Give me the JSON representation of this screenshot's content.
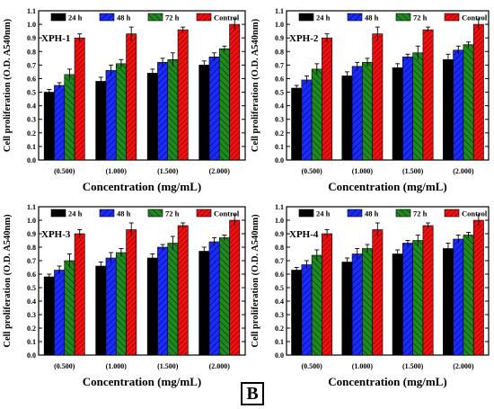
{
  "figure_label": "B",
  "colors": {
    "24 h": "#000000",
    "48 h": "#1a2bff",
    "72 h": "#1f8a1f",
    "Control": "#f01010"
  },
  "hatches": {
    "24 h": "none",
    "48 h": "diag-right",
    "72 h": "diag-left",
    "Control": "diag-right-dense"
  },
  "chart_data": [
    {
      "type": "bar",
      "panel_label": "XPH-1",
      "categories": [
        "(0.500)",
        "(1.000)",
        "(1.500)",
        "(2.000)"
      ],
      "series": [
        {
          "name": "24 h",
          "values": [
            0.5,
            0.58,
            0.64,
            0.7
          ],
          "errors": [
            0.02,
            0.03,
            0.03,
            0.03
          ]
        },
        {
          "name": "48 h",
          "values": [
            0.55,
            0.66,
            0.72,
            0.76
          ],
          "errors": [
            0.02,
            0.04,
            0.03,
            0.03
          ]
        },
        {
          "name": "72 h",
          "values": [
            0.63,
            0.71,
            0.74,
            0.82
          ],
          "errors": [
            0.04,
            0.03,
            0.05,
            0.02
          ]
        },
        {
          "name": "Control",
          "values": [
            0.9,
            0.93,
            0.96,
            1.0
          ],
          "errors": [
            0.03,
            0.05,
            0.02,
            0.04
          ]
        }
      ],
      "xlabel": "Concentration (mg/mL)",
      "ylabel": "Cell proliferation (O.D. A540nm)",
      "ylim": [
        0,
        1.1
      ],
      "yticks": [
        "0.0",
        "0.1",
        "0.2",
        "0.3",
        "0.4",
        "0.5",
        "0.6",
        "0.7",
        "0.8",
        "0.9",
        "1.0",
        "1.1"
      ],
      "legend_placement": "top"
    },
    {
      "type": "bar",
      "panel_label": "XPH-2",
      "categories": [
        "(0.500)",
        "(1.000)",
        "(1.500)",
        "(2.000)"
      ],
      "series": [
        {
          "name": "24 h",
          "values": [
            0.53,
            0.62,
            0.68,
            0.74
          ],
          "errors": [
            0.02,
            0.03,
            0.03,
            0.04
          ]
        },
        {
          "name": "48 h",
          "values": [
            0.59,
            0.69,
            0.76,
            0.81
          ],
          "errors": [
            0.03,
            0.03,
            0.02,
            0.03
          ]
        },
        {
          "name": "72 h",
          "values": [
            0.67,
            0.72,
            0.79,
            0.85
          ],
          "errors": [
            0.04,
            0.03,
            0.05,
            0.02
          ]
        },
        {
          "name": "Control",
          "values": [
            0.9,
            0.93,
            0.96,
            1.0
          ],
          "errors": [
            0.03,
            0.05,
            0.02,
            0.04
          ]
        }
      ],
      "xlabel": "Concentration (mg/mL)",
      "ylabel": "Cell proliferation (O.D. A540nm)",
      "ylim": [
        0,
        1.1
      ],
      "yticks": [
        "0.0",
        "0.1",
        "0.2",
        "0.3",
        "0.4",
        "0.5",
        "0.6",
        "0.7",
        "0.8",
        "0.9",
        "1.0",
        "1.1"
      ],
      "legend_placement": "top"
    },
    {
      "type": "bar",
      "panel_label": "XPH-3",
      "categories": [
        "(0.500)",
        "(1.000)",
        "(1.500)",
        "(2.000)"
      ],
      "series": [
        {
          "name": "24 h",
          "values": [
            0.58,
            0.66,
            0.72,
            0.77
          ],
          "errors": [
            0.02,
            0.03,
            0.03,
            0.03
          ]
        },
        {
          "name": "48 h",
          "values": [
            0.63,
            0.72,
            0.8,
            0.84
          ],
          "errors": [
            0.03,
            0.04,
            0.02,
            0.03
          ]
        },
        {
          "name": "72 h",
          "values": [
            0.7,
            0.76,
            0.83,
            0.87
          ],
          "errors": [
            0.05,
            0.03,
            0.05,
            0.02
          ]
        },
        {
          "name": "Control",
          "values": [
            0.9,
            0.93,
            0.96,
            1.0
          ],
          "errors": [
            0.03,
            0.05,
            0.02,
            0.04
          ]
        }
      ],
      "xlabel": "Concentration (mg/mL)",
      "ylabel": "Cell proliferation (O.D. A540nm)",
      "ylim": [
        0,
        1.1
      ],
      "yticks": [
        "0.0",
        "0.1",
        "0.2",
        "0.3",
        "0.4",
        "0.5",
        "0.6",
        "0.7",
        "0.8",
        "0.9",
        "1.0",
        "1.1"
      ],
      "legend_placement": "top"
    },
    {
      "type": "bar",
      "panel_label": "XPH-4",
      "categories": [
        "(0.500)",
        "(1.000)",
        "(1.500)",
        "(2.000)"
      ],
      "series": [
        {
          "name": "24 h",
          "values": [
            0.63,
            0.69,
            0.75,
            0.79
          ],
          "errors": [
            0.02,
            0.03,
            0.03,
            0.04
          ]
        },
        {
          "name": "48 h",
          "values": [
            0.67,
            0.75,
            0.83,
            0.86
          ],
          "errors": [
            0.03,
            0.04,
            0.02,
            0.03
          ]
        },
        {
          "name": "72 h",
          "values": [
            0.74,
            0.79,
            0.85,
            0.89
          ],
          "errors": [
            0.04,
            0.03,
            0.04,
            0.02
          ]
        },
        {
          "name": "Control",
          "values": [
            0.9,
            0.93,
            0.96,
            1.0
          ],
          "errors": [
            0.03,
            0.05,
            0.02,
            0.04
          ]
        }
      ],
      "xlabel": "Concentration (mg/mL)",
      "ylabel": "Cell proliferation (O.D. A540nm)",
      "ylim": [
        0,
        1.1
      ],
      "yticks": [
        "0.0",
        "0.1",
        "0.2",
        "0.3",
        "0.4",
        "0.5",
        "0.6",
        "0.7",
        "0.8",
        "0.9",
        "1.0",
        "1.1"
      ],
      "legend_placement": "top"
    }
  ]
}
